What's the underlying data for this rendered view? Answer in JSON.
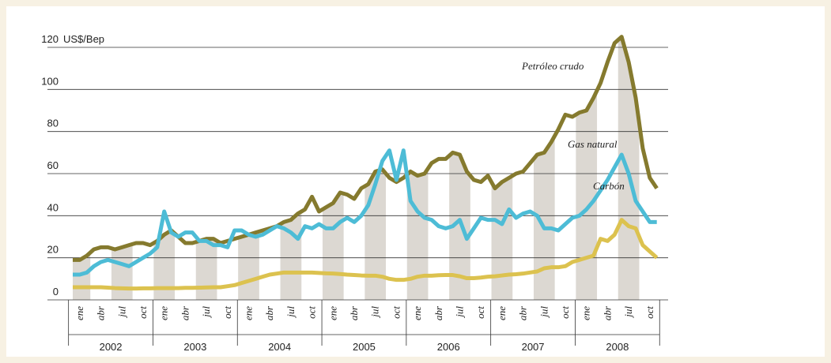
{
  "chart_data": {
    "type": "line",
    "y_unit": "US$/Bep",
    "categories": [
      "ene",
      null,
      null,
      "abr",
      null,
      null,
      "jul",
      null,
      null,
      "oct",
      null,
      null,
      "ene",
      null,
      null,
      "abr",
      null,
      null,
      "jul",
      null,
      null,
      "oct",
      null,
      null,
      "ene",
      null,
      null,
      "abr",
      null,
      null,
      "jul",
      null,
      null,
      "oct",
      null,
      null,
      "ene",
      null,
      null,
      "abr",
      null,
      null,
      "jul",
      null,
      null,
      "oct",
      null,
      null,
      "ene",
      null,
      null,
      "abr",
      null,
      null,
      "jul",
      null,
      null,
      "oct",
      null,
      null,
      "ene",
      null,
      null,
      "abr",
      null,
      null,
      "jul",
      null,
      null,
      "oct",
      null,
      null,
      "ene",
      null,
      null,
      "abr",
      null,
      null,
      "jul",
      null,
      null,
      "oct",
      null,
      null
    ],
    "years": [
      "2002",
      "2003",
      "2004",
      "2005",
      "2006",
      "2007",
      "2008"
    ],
    "series": [
      {
        "name": "Petróleo crudo",
        "color": "#857a2e",
        "values": [
          19,
          19,
          21,
          24,
          25,
          25,
          24,
          25,
          26,
          27,
          27,
          26,
          28,
          31,
          33,
          30,
          27,
          27,
          28,
          29,
          29,
          27,
          28,
          29,
          30,
          31,
          32,
          33,
          34,
          35,
          37,
          38,
          41,
          43,
          49,
          42,
          44,
          46,
          51,
          50,
          48,
          53,
          55,
          61,
          62,
          58,
          56,
          58,
          61,
          59,
          60,
          65,
          67,
          67,
          70,
          69,
          61,
          57,
          56,
          59,
          53,
          56,
          58,
          60,
          61,
          65,
          69,
          70,
          75,
          81,
          88,
          87,
          89,
          90,
          96,
          103,
          113,
          122,
          125,
          113,
          96,
          72,
          58,
          53
        ]
      },
      {
        "name": "Gas natural",
        "color": "#4dbcd6",
        "values": [
          12,
          12,
          13,
          16,
          18,
          19,
          18,
          17,
          16,
          18,
          20,
          22,
          25,
          42,
          32,
          30,
          32,
          32,
          28,
          28,
          26,
          26,
          25,
          33,
          33,
          31,
          30,
          31,
          33,
          35,
          34,
          32,
          29,
          35,
          34,
          36,
          34,
          34,
          37,
          39,
          37,
          40,
          45,
          55,
          66,
          71,
          57,
          71,
          47,
          42,
          39,
          38,
          35,
          34,
          35,
          38,
          29,
          34,
          39,
          38,
          38,
          36,
          43,
          39,
          41,
          42,
          40,
          34,
          34,
          33,
          36,
          39,
          40,
          43,
          47,
          52,
          57,
          63,
          69,
          60,
          47,
          42,
          37,
          37
        ]
      },
      {
        "name": "Carbón",
        "color": "#dcc24f",
        "values": [
          6,
          6,
          6,
          6,
          6,
          5.8,
          5.6,
          5.5,
          5.4,
          5.4,
          5.5,
          5.5,
          5.6,
          5.6,
          5.6,
          5.6,
          5.7,
          5.7,
          5.8,
          5.9,
          6,
          6,
          6.5,
          7,
          8,
          9,
          10,
          11,
          12,
          12.5,
          13,
          13,
          13,
          13,
          13,
          12.8,
          12.6,
          12.5,
          12.3,
          12,
          11.8,
          11.6,
          11.5,
          11.5,
          11,
          10,
          9.5,
          9.5,
          10,
          11,
          11.5,
          11.5,
          11.7,
          11.8,
          11.8,
          11.2,
          10.3,
          10.3,
          10.6,
          11,
          11.2,
          11.6,
          12,
          12.2,
          12.5,
          13,
          13.5,
          15,
          15.5,
          15.5,
          16,
          18,
          19,
          20,
          21,
          29,
          28,
          31,
          38,
          35,
          34,
          26,
          23,
          20
        ]
      }
    ],
    "ylim": [
      0,
      120
    ],
    "yticks": [
      0,
      20,
      40,
      60,
      80,
      100,
      120
    ],
    "grid": true
  }
}
